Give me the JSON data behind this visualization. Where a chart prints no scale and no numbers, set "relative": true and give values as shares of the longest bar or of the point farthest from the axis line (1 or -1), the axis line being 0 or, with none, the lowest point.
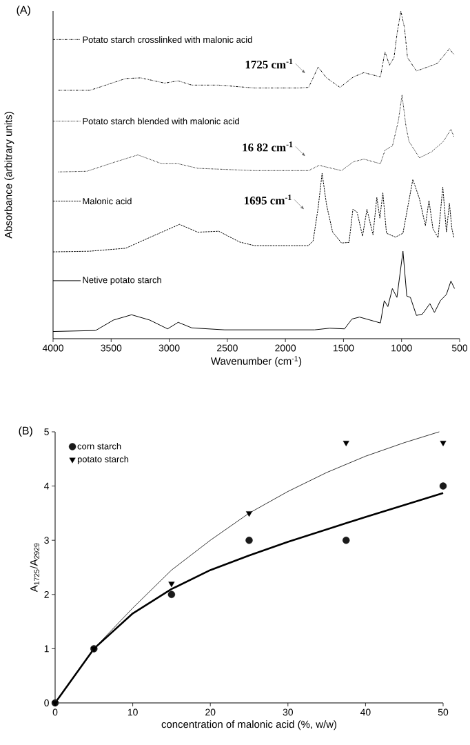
{
  "chart_data": [
    {
      "type": "line",
      "title": "(A)",
      "xlabel": "Wavenumber (cm$^{-1}$)",
      "ylabel": "Absorbance (arbitrary units)",
      "relative": true,
      "xlim": [
        4000,
        500
      ],
      "xticks": [
        4000,
        3500,
        3000,
        2500,
        2000,
        1500,
        1000,
        500
      ],
      "legend": "top left",
      "annotations": [
        "1725 cm$^{-1}$",
        "16 82 cm$^{-1}$",
        "1695 cm$^{-1}$"
      ],
      "series": [
        {
          "name": "Potato starch crosslinked with malonic acid",
          "color": "#000000",
          "line_style": "dashdotted",
          "x": [
            3954,
            3683,
            3374,
            3245,
            3039,
            2923,
            2806,
            2574,
            2265,
            1878,
            1800,
            1718,
            1646,
            1530,
            1414,
            1324,
            1182,
            1143,
            1104,
            1065,
            1039,
            1006,
            975,
            949,
            872,
            769,
            692,
            588,
            549
          ],
          "values": [
            0.758,
            0.758,
            0.794,
            0.796,
            0.78,
            0.787,
            0.774,
            0.774,
            0.765,
            0.765,
            0.767,
            0.829,
            0.796,
            0.767,
            0.799,
            0.812,
            0.799,
            0.876,
            0.835,
            0.858,
            0.931,
            1.0,
            0.949,
            0.858,
            0.817,
            0.83,
            0.84,
            0.885,
            0.867
          ]
        },
        {
          "name": "Potato starch blended with malonic acid",
          "color": "#000000",
          "line_style": "dotted",
          "x": [
            3954,
            3709,
            3477,
            3270,
            3064,
            2923,
            2755,
            2265,
            1800,
            1710,
            1517,
            1414,
            1324,
            1182,
            1143,
            1078,
            1027,
            996,
            962,
            936,
            846,
            743,
            640,
            575,
            549
          ],
          "values": [
            0.509,
            0.511,
            0.538,
            0.561,
            0.534,
            0.534,
            0.52,
            0.513,
            0.513,
            0.529,
            0.513,
            0.54,
            0.548,
            0.534,
            0.575,
            0.589,
            0.666,
            0.744,
            0.648,
            0.602,
            0.552,
            0.57,
            0.602,
            0.639,
            0.616
          ]
        },
        {
          "name": "Malonic acid",
          "color": "#000000",
          "line_style": "dashed",
          "x": [
            4000,
            3685,
            3376,
            3142,
            2911,
            2755,
            2574,
            2394,
            2265,
            1800,
            1761,
            1718,
            1684,
            1646,
            1594,
            1517,
            1452,
            1419,
            1383,
            1336,
            1298,
            1246,
            1213,
            1187,
            1161,
            1130,
            1053,
            988,
            903,
            846,
            795,
            764,
            730,
            686,
            645,
            614,
            588,
            567,
            549
          ],
          "values": [
            0.265,
            0.267,
            0.276,
            0.313,
            0.349,
            0.325,
            0.328,
            0.295,
            0.284,
            0.284,
            0.299,
            0.4,
            0.505,
            0.409,
            0.326,
            0.292,
            0.294,
            0.395,
            0.386,
            0.313,
            0.395,
            0.317,
            0.431,
            0.368,
            0.445,
            0.322,
            0.31,
            0.322,
            0.486,
            0.427,
            0.345,
            0.422,
            0.336,
            0.308,
            0.463,
            0.326,
            0.413,
            0.336,
            0.308
          ]
        },
        {
          "name": "Netive potato starch",
          "color": "#000000",
          "line_style": "solid",
          "x": [
            4000,
            3634,
            3479,
            3324,
            3169,
            3014,
            2923,
            2806,
            2523,
            1749,
            1620,
            1491,
            1427,
            1362,
            1182,
            1149,
            1118,
            1079,
            1040,
            988,
            955,
            924,
            872,
            821,
            756,
            717,
            666,
            614,
            575,
            544
          ],
          "values": [
            0.022,
            0.025,
            0.057,
            0.073,
            0.057,
            0.03,
            0.05,
            0.033,
            0.027,
            0.027,
            0.032,
            0.03,
            0.06,
            0.066,
            0.048,
            0.116,
            0.098,
            0.153,
            0.126,
            0.267,
            0.13,
            0.126,
            0.071,
            0.075,
            0.107,
            0.08,
            0.116,
            0.135,
            0.176,
            0.153
          ]
        }
      ]
    },
    {
      "type": "scatter",
      "title": "(B)",
      "xlabel": "concentration of malonic acid (%, w/w)",
      "ylabel": "A$_{1725}$/A$_{2929}$",
      "xlim": [
        0,
        50
      ],
      "ylim": [
        0,
        5
      ],
      "xticks": [
        0,
        10,
        20,
        30,
        40,
        50
      ],
      "yticks": [
        0,
        1,
        2,
        3,
        4,
        5
      ],
      "legend": "top left",
      "series": [
        {
          "name": "corn starch",
          "color": "#1a1a1a",
          "marker": "circle",
          "x": [
            0,
            5,
            15,
            25,
            37.5,
            50
          ],
          "values": [
            0,
            1,
            2,
            3,
            3,
            4
          ]
        },
        {
          "name": "potato starch",
          "color": "#000000",
          "marker": "triangle",
          "x": [
            0,
            5,
            15,
            25,
            37.5,
            50
          ],
          "values": [
            0,
            1,
            2.2,
            3.5,
            4.8,
            4.8
          ]
        },
        {
          "type": "line",
          "color": "#000000",
          "x": [
            0,
            5,
            10,
            15,
            20,
            25,
            30,
            35,
            40,
            45,
            50
          ],
          "values": [
            0,
            1,
            1.65,
            2.1,
            2.45,
            2.72,
            2.97,
            3.2,
            3.43,
            3.65,
            3.87
          ]
        },
        {
          "type": "line",
          "color": "#000000",
          "x": [
            0,
            5,
            10,
            15,
            20,
            25,
            30,
            35,
            40,
            45,
            49.5
          ],
          "values": [
            0,
            1,
            1.75,
            2.45,
            3.0,
            3.5,
            3.9,
            4.25,
            4.55,
            4.8,
            5.0
          ]
        }
      ]
    }
  ]
}
